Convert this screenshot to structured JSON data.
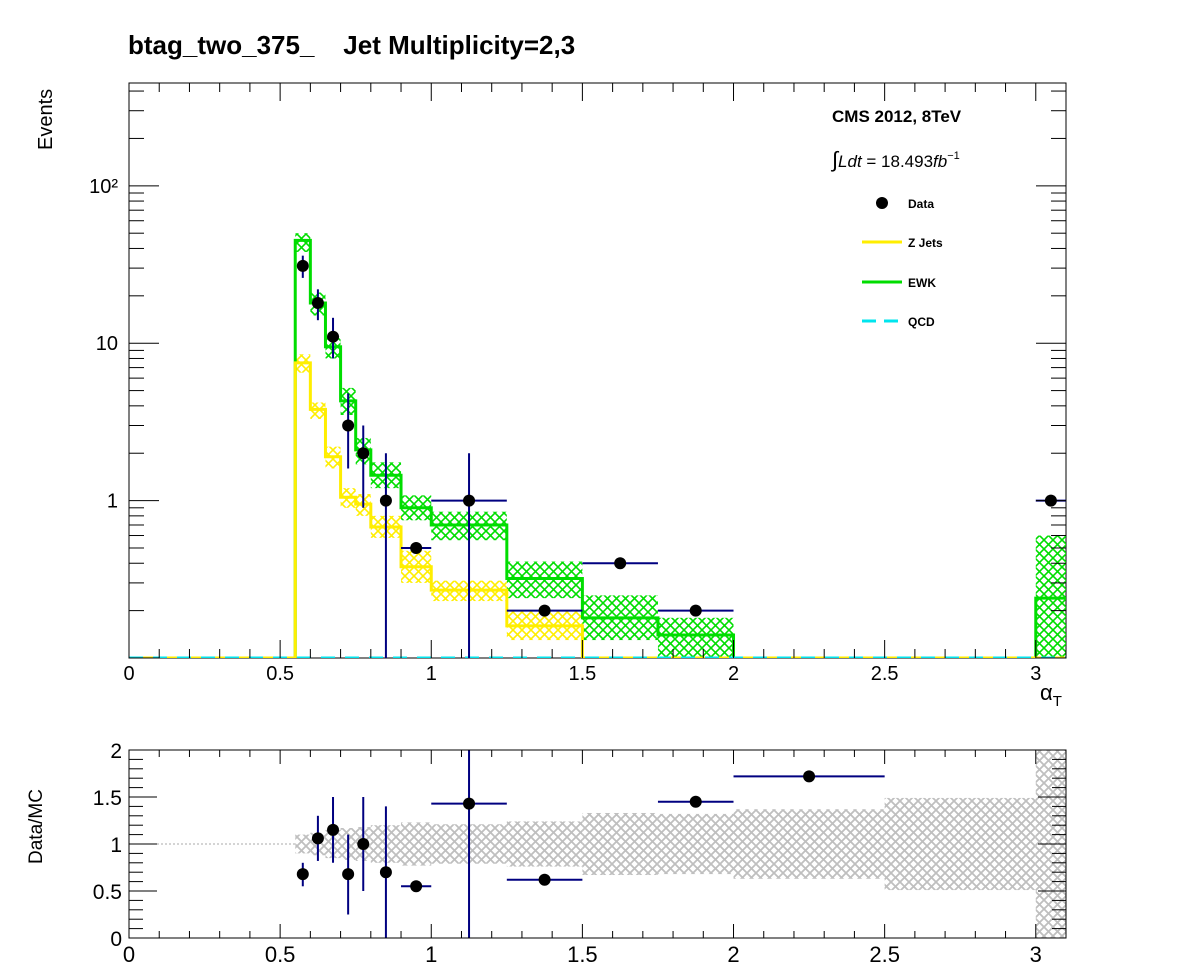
{
  "chart_data": [
    {
      "type": "histogram",
      "title": "btag_two_375_    Jet Multiplicity=2,3",
      "xlabel": "α_T",
      "ylabel": "Events",
      "yscale": "log",
      "xlim": [
        0,
        3.1
      ],
      "ylim": [
        0.1,
        450
      ],
      "x_tick_labels": [
        "0",
        "0.5",
        "1",
        "1.5",
        "2",
        "2.5",
        "3"
      ],
      "y_tick_labels": [
        "1",
        "10",
        "10²"
      ],
      "annotations": [
        "CMS 2012, 8TeV",
        "∫Ldt = 18.493fb⁻¹"
      ],
      "legend": {
        "placement": "top-right",
        "entries": [
          {
            "label": "Data",
            "style": "marker",
            "color": "#000000"
          },
          {
            "label": "Z Jets",
            "style": "line",
            "color": "#ffee00"
          },
          {
            "label": "EWK",
            "style": "line",
            "color": "#00dd00"
          },
          {
            "label": "QCD",
            "style": "dashed",
            "color": "#00e5ee"
          }
        ]
      },
      "bin_edges": [
        0,
        0.55,
        0.6,
        0.65,
        0.7,
        0.75,
        0.8,
        0.9,
        1.0,
        1.25,
        1.5,
        1.75,
        2.0,
        3.0,
        3.1
      ],
      "series": [
        {
          "name": "EWK",
          "color": "#00dd00",
          "values": [
            0,
            45,
            18,
            9.5,
            4.3,
            2.1,
            1.45,
            0.9,
            0.7,
            0.32,
            0.18,
            0.14,
            0,
            0.24
          ],
          "band_low": [
            0,
            38,
            15,
            8,
            3.5,
            1.7,
            1.2,
            0.75,
            0.56,
            0.24,
            0.13,
            0.1,
            0,
            0.1
          ],
          "band_high": [
            0,
            50,
            21,
            11,
            5.2,
            2.5,
            1.75,
            1.08,
            0.85,
            0.41,
            0.25,
            0.18,
            0,
            0.6
          ]
        },
        {
          "name": "Z Jets",
          "color": "#ffee00",
          "values": [
            0,
            7.5,
            3.8,
            1.9,
            1.05,
            0.95,
            0.68,
            0.38,
            0.27,
            0.16,
            0,
            0,
            0,
            0
          ],
          "band_low": [
            0,
            6.5,
            3.3,
            1.6,
            0.9,
            0.8,
            0.58,
            0.3,
            0.23,
            0.13,
            0,
            0,
            0,
            0
          ],
          "band_high": [
            0,
            8.5,
            4.2,
            2.2,
            1.2,
            1.1,
            0.8,
            0.48,
            0.31,
            0.2,
            0,
            0,
            0,
            0
          ]
        },
        {
          "name": "QCD",
          "color": "#00e5ee",
          "values": [
            0,
            0.1,
            0.1,
            0.1,
            0.1,
            0.1,
            0.1,
            0.1,
            0.1,
            0.1,
            0.1,
            0,
            0,
            0
          ]
        }
      ],
      "data_points": [
        {
          "x": 0.575,
          "y": 31,
          "xerr": 0.0,
          "ylow": 26,
          "yhigh": 36
        },
        {
          "x": 0.625,
          "y": 18,
          "xerr": 0.0,
          "ylow": 14,
          "yhigh": 22
        },
        {
          "x": 0.675,
          "y": 11,
          "xerr": 0.0,
          "ylow": 8,
          "yhigh": 14.5
        },
        {
          "x": 0.725,
          "y": 3,
          "xerr": 0.0,
          "ylow": 1.6,
          "yhigh": 4.8
        },
        {
          "x": 0.775,
          "y": 2,
          "xerr": 0.0,
          "ylow": 0.9,
          "yhigh": 3
        },
        {
          "x": 0.85,
          "y": 1,
          "xerr": 0.0,
          "ylow": 0.1,
          "yhigh": 2
        },
        {
          "x": 0.95,
          "y": 0.5,
          "xerr": 0.05,
          "ylow": 0.5,
          "yhigh": 0.5
        },
        {
          "x": 1.125,
          "y": 1,
          "xerr": 0.125,
          "ylow": 0.1,
          "yhigh": 2
        },
        {
          "x": 1.375,
          "y": 0.2,
          "xerr": 0.125,
          "ylow": 0.2,
          "yhigh": 0.2
        },
        {
          "x": 1.625,
          "y": 0.4,
          "xerr": 0.125,
          "ylow": 0.4,
          "yhigh": 0.4
        },
        {
          "x": 1.875,
          "y": 0.2,
          "xerr": 0.125,
          "ylow": 0.2,
          "yhigh": 0.2
        },
        {
          "x": 3.05,
          "y": 1,
          "xerr": 0.05,
          "ylow": 1,
          "yhigh": 1
        }
      ]
    },
    {
      "type": "ratio",
      "ylabel": "Data/MC",
      "xlim": [
        0,
        3.1
      ],
      "ylim": [
        0,
        2
      ],
      "x_tick_labels": [
        "0",
        "0.5",
        "1",
        "1.5",
        "2",
        "2.5",
        "3"
      ],
      "y_tick_labels": [
        "0",
        "0.5",
        "1",
        "1.5",
        "2"
      ],
      "reference_line": 1,
      "band": [
        {
          "x0": 0.55,
          "x1": 0.6,
          "low": 0.9,
          "high": 1.1
        },
        {
          "x0": 0.6,
          "x1": 0.65,
          "low": 0.88,
          "high": 1.12
        },
        {
          "x0": 0.65,
          "x1": 0.7,
          "low": 0.85,
          "high": 1.15
        },
        {
          "x0": 0.7,
          "x1": 0.75,
          "low": 0.83,
          "high": 1.17
        },
        {
          "x0": 0.75,
          "x1": 0.8,
          "low": 0.82,
          "high": 1.18
        },
        {
          "x0": 0.8,
          "x1": 0.9,
          "low": 0.8,
          "high": 1.2
        },
        {
          "x0": 0.9,
          "x1": 1.0,
          "low": 0.77,
          "high": 1.23
        },
        {
          "x0": 1.0,
          "x1": 1.25,
          "low": 0.79,
          "high": 1.21
        },
        {
          "x0": 1.25,
          "x1": 1.5,
          "low": 0.76,
          "high": 1.24
        },
        {
          "x0": 1.5,
          "x1": 1.75,
          "low": 0.67,
          "high": 1.33
        },
        {
          "x0": 1.75,
          "x1": 2.0,
          "low": 0.68,
          "high": 1.32
        },
        {
          "x0": 2.0,
          "x1": 2.5,
          "low": 0.63,
          "high": 1.37
        },
        {
          "x0": 2.5,
          "x1": 3.0,
          "low": 0.51,
          "high": 1.49
        },
        {
          "x0": 3.0,
          "x1": 3.1,
          "low": 0.0,
          "high": 2.0
        }
      ],
      "points": [
        {
          "x": 0.575,
          "y": 0.68,
          "xerr": 0.0,
          "ylow": 0.55,
          "yhigh": 0.8
        },
        {
          "x": 0.625,
          "y": 1.06,
          "xerr": 0.0,
          "ylow": 0.82,
          "yhigh": 1.3
        },
        {
          "x": 0.675,
          "y": 1.15,
          "xerr": 0.0,
          "ylow": 0.8,
          "yhigh": 1.5
        },
        {
          "x": 0.725,
          "y": 0.68,
          "xerr": 0.0,
          "ylow": 0.25,
          "yhigh": 1.1
        },
        {
          "x": 0.775,
          "y": 1.0,
          "xerr": 0.0,
          "ylow": 0.5,
          "yhigh": 1.5
        },
        {
          "x": 0.85,
          "y": 0.7,
          "xerr": 0.0,
          "ylow": 0.0,
          "yhigh": 1.4
        },
        {
          "x": 0.95,
          "y": 0.55,
          "xerr": 0.05,
          "ylow": 0.55,
          "yhigh": 0.55
        },
        {
          "x": 1.125,
          "y": 1.43,
          "xerr": 0.125,
          "ylow": 0.0,
          "yhigh": 2.0
        },
        {
          "x": 1.375,
          "y": 0.62,
          "xerr": 0.125,
          "ylow": 0.62,
          "yhigh": 0.62
        },
        {
          "x": 1.875,
          "y": 1.45,
          "xerr": 0.125,
          "ylow": 1.45,
          "yhigh": 1.45
        },
        {
          "x": 2.25,
          "y": 1.72,
          "xerr": 0.25,
          "ylow": 1.72,
          "yhigh": 1.72
        }
      ]
    }
  ]
}
